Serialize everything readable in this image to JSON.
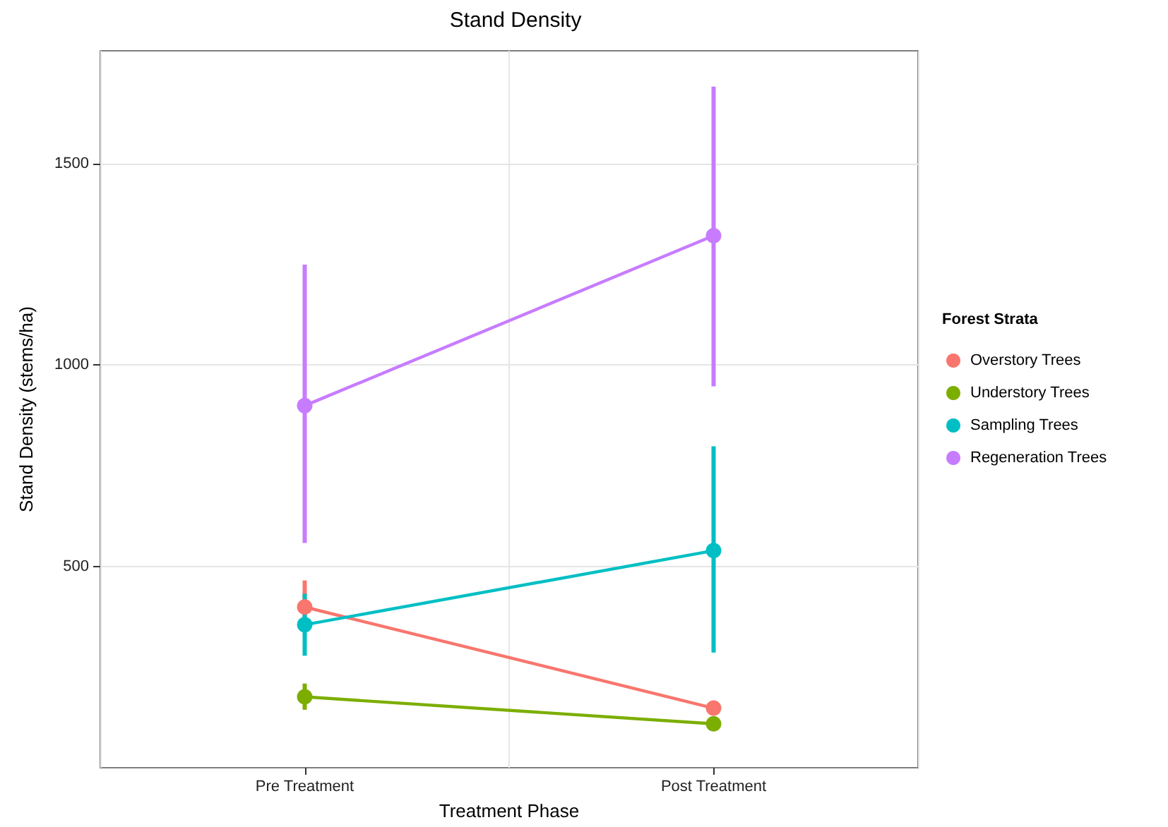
{
  "chart_data": {
    "type": "line",
    "title": "Stand Density",
    "xlabel": "Treatment Phase",
    "ylabel": "Stand Density (stems/ha)",
    "legend_title": "Forest Strata",
    "categories": [
      "Pre Treatment",
      "Post Treatment"
    ],
    "series": [
      {
        "name": "Overstory Trees",
        "color": "#f8766d",
        "values": [
          399,
          148
        ],
        "errors": [
          [
            365,
            465
          ],
          [
            135,
            160
          ]
        ]
      },
      {
        "name": "Understory Trees",
        "color": "#7cae00",
        "values": [
          176,
          109
        ],
        "errors": [
          [
            144,
            209
          ],
          [
            95,
            122
          ]
        ]
      },
      {
        "name": "Sampling Trees",
        "color": "#00bfc4",
        "values": [
          355,
          539
        ],
        "errors": [
          [
            278,
            432
          ],
          [
            286,
            798
          ]
        ]
      },
      {
        "name": "Regeneration Trees",
        "color": "#c77cff",
        "values": [
          899,
          1321
        ],
        "errors": [
          [
            558,
            1249
          ],
          [
            947,
            1691
          ]
        ]
      }
    ],
    "ylim": [
      0,
      1780
    ],
    "yticks": [
      500,
      1000,
      1500
    ],
    "grid": true,
    "legend": "right",
    "marker": "circle",
    "line_style": "solid"
  }
}
